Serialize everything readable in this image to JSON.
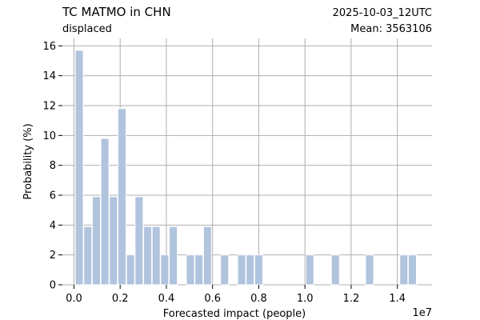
{
  "chart_data": {
    "type": "bar",
    "title": "TC MATMO in CHN",
    "subtitle": "displaced",
    "run_label": "2025-10-03_12UTC",
    "mean_label": "Mean: 3563106",
    "xlabel": "Forecasted impact (people)",
    "ylabel": "Probability (%)",
    "x_offset_label": "1e7",
    "xlim": [
      -0.05,
      1.55
    ],
    "ylim": [
      0,
      16.5
    ],
    "x_ticks": [
      0.0,
      0.2,
      0.4,
      0.6,
      0.8,
      1.0,
      1.2,
      1.4
    ],
    "x_tick_labels": [
      "0.0",
      "0.2",
      "0.4",
      "0.6",
      "0.8",
      "1.0",
      "1.2",
      "1.4"
    ],
    "y_ticks": [
      0,
      2,
      4,
      6,
      8,
      10,
      12,
      14,
      16
    ],
    "y_tick_labels": [
      "0",
      "2",
      "4",
      "6",
      "8",
      "10",
      "12",
      "14",
      "16"
    ],
    "grid": true,
    "bar_width": 0.0347,
    "x": [
      0.023,
      0.06,
      0.097,
      0.134,
      0.171,
      0.208,
      0.245,
      0.282,
      0.319,
      0.356,
      0.393,
      0.43,
      0.504,
      0.541,
      0.578,
      0.652,
      0.726,
      0.763,
      0.8,
      1.021,
      1.132,
      1.28,
      1.428,
      1.465
    ],
    "values": [
      15.7,
      3.9,
      5.9,
      9.8,
      5.9,
      11.8,
      2.0,
      5.9,
      3.9,
      3.9,
      2.0,
      3.9,
      2.0,
      2.0,
      3.9,
      2.0,
      2.0,
      2.0,
      2.0,
      2.0,
      2.0,
      2.0,
      2.0,
      2.0
    ],
    "colors": {
      "bar": "#b0c4de",
      "grid": "#b0b0b0",
      "run_label": "#ff0000",
      "text": "#000000"
    }
  }
}
